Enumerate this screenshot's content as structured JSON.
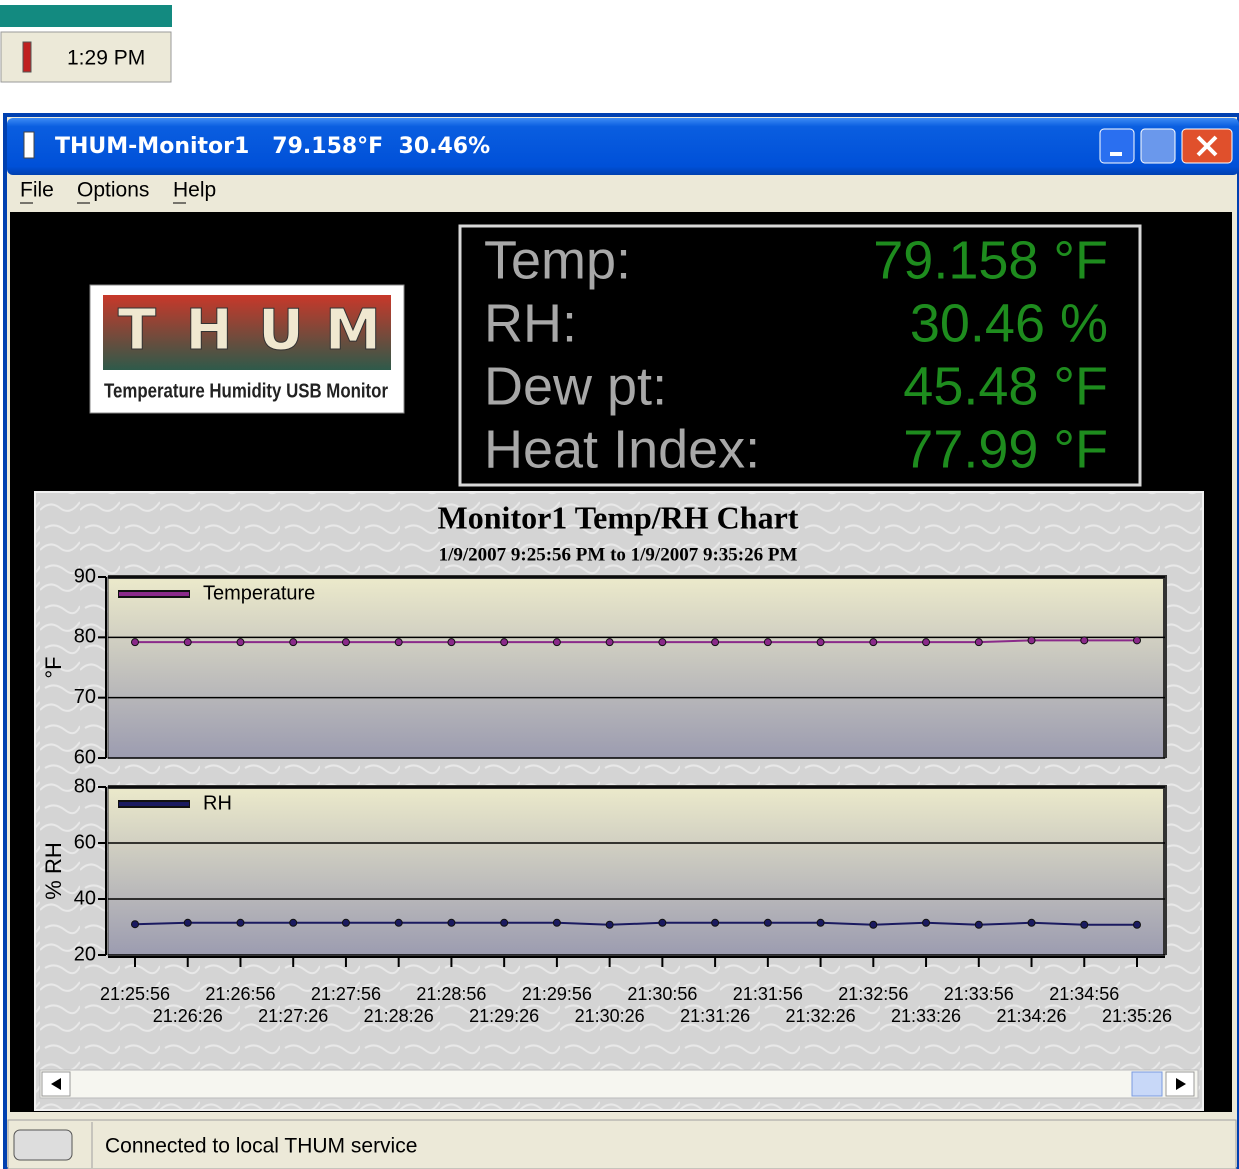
{
  "taskbar": {
    "time": "1:29 PM"
  },
  "window": {
    "title": "THUM-Monitor1   79.158°F  30.46%",
    "menu": [
      "File",
      "Options",
      "Help"
    ],
    "logo": {
      "letters": [
        "T",
        "H",
        "U",
        "M"
      ],
      "caption": "Temperature Humidity USB Monitor"
    },
    "readings": [
      {
        "label": "Temp:",
        "value": "79.158 °F"
      },
      {
        "label": "RH:",
        "value": "30.46 %"
      },
      {
        "label": "Dew pt:",
        "value": "45.48 °F"
      },
      {
        "label": "Heat Index:",
        "value": "77.99 °F"
      }
    ],
    "status": "Connected to local THUM service"
  },
  "chart_data": [
    {
      "type": "line",
      "title": "Monitor1 Temp/RH Chart",
      "subtitle": "1/9/2007 9:25:56 PM to 1/9/2007 9:35:26 PM",
      "ylabel": "°F",
      "ylim": [
        60,
        90
      ],
      "yticks": [
        60,
        70,
        80,
        90
      ],
      "grid": true,
      "series": [
        {
          "name": "Temperature",
          "color": "#8a2a8a",
          "values": [
            79.2,
            79.2,
            79.2,
            79.2,
            79.2,
            79.2,
            79.2,
            79.2,
            79.2,
            79.2,
            79.2,
            79.2,
            79.2,
            79.2,
            79.2,
            79.2,
            79.2,
            79.5,
            79.5,
            79.5
          ]
        }
      ]
    },
    {
      "type": "line",
      "ylabel": "% RH",
      "ylim": [
        20,
        80
      ],
      "yticks": [
        20,
        40,
        60,
        80
      ],
      "grid": true,
      "categories": [
        "21:25:56",
        "21:26:26",
        "21:26:56",
        "21:27:26",
        "21:27:56",
        "21:28:26",
        "21:28:56",
        "21:29:26",
        "21:29:56",
        "21:30:26",
        "21:30:56",
        "21:31:26",
        "21:31:56",
        "21:32:26",
        "21:32:56",
        "21:33:26",
        "21:33:56",
        "21:34:26",
        "21:34:56",
        "21:35:26"
      ],
      "series": [
        {
          "name": "RH",
          "color": "#1a1a60",
          "values": [
            31.0,
            31.5,
            31.5,
            31.5,
            31.5,
            31.5,
            31.5,
            31.5,
            31.5,
            30.8,
            31.5,
            31.5,
            31.5,
            31.5,
            30.8,
            31.5,
            30.8,
            31.5,
            30.8,
            30.8
          ]
        }
      ]
    }
  ]
}
